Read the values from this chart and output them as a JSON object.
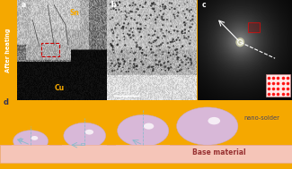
{
  "fig_width": 3.25,
  "fig_height": 1.89,
  "dpi": 100,
  "gold_color": "#F5A800",
  "white": "#ffffff",
  "label_a": "a",
  "label_b": "b",
  "label_c": "c",
  "label_d": "d",
  "side_label": "After heating",
  "sn_label": "Sn",
  "cu_label": "Cu",
  "nano_solder_label": "nano-solder",
  "base_material_label": "Base material",
  "bottom_bg": "#e8eeff",
  "base_color": "#f5c5b8",
  "base_edge_color": "#e8a898",
  "sphere_color": "#d8b8d8",
  "sphere_color2": "#e0c8e0",
  "arrow_color": "#88bbcc",
  "theta_label": "θ",
  "panel_a_bg": "#666666",
  "panel_b_bg": "#aaaaaa",
  "panel_c_bg": "#111111",
  "cu_dark": "#080808",
  "panel_border": "#F5A800",
  "red_roi": "#cc0000",
  "white_arrow": "#ffffff",
  "inset_bg": "#ffe8e8"
}
